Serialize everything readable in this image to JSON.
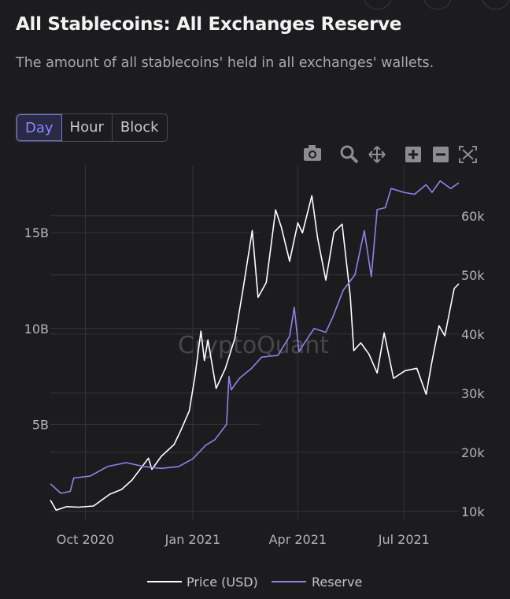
{
  "header": {
    "title": "All Stablecoins: All Exchanges Reserve",
    "subtitle": "The amount of all stablecoins' held in all exchanges' wallets."
  },
  "tabs": [
    "Day",
    "Hour",
    "Block"
  ],
  "active_tab": "Day",
  "toolbar": [
    "camera-icon",
    "zoom-icon",
    "pan-icon",
    "zoom-in-icon",
    "zoom-out-icon",
    "autoscale-icon"
  ],
  "watermark": "CryptoQuant",
  "colors": {
    "price": "#ffffff",
    "reserve": "#8b84ea",
    "background": "#1c1c1f",
    "grid": "#34343a",
    "axis_text": "#b4b4b8"
  },
  "chart_data": {
    "type": "line",
    "x_tick_labels": [
      "Oct 2020",
      "Jan 2021",
      "Apr 2021",
      "Jul 2021"
    ],
    "x_ticks": [
      "2020-10-01",
      "2021-01-01",
      "2021-04-01",
      "2021-07-01"
    ],
    "xlim": [
      "2020-09-01",
      "2021-08-17"
    ],
    "left_axis": {
      "ticks": [
        5,
        10,
        15
      ],
      "tick_labels": [
        "5B",
        "10B",
        "15B"
      ],
      "range": [
        0,
        18.5
      ]
    },
    "right_axis": {
      "ticks": [
        10000,
        20000,
        30000,
        40000,
        50000,
        60000
      ],
      "tick_labels": [
        "10k",
        "20k",
        "30k",
        "40k",
        "50k",
        "60k"
      ],
      "range": [
        8500,
        68500
      ]
    },
    "grid": true,
    "legend": "bottom-center",
    "series": [
      {
        "name": "Price (USD)",
        "axis": "right",
        "color": "#ffffff",
        "points": [
          [
            "2020-09-01",
            11900
          ],
          [
            "2020-09-06",
            10200
          ],
          [
            "2020-09-15",
            10800
          ],
          [
            "2020-09-25",
            10700
          ],
          [
            "2020-10-08",
            10900
          ],
          [
            "2020-10-22",
            12900
          ],
          [
            "2020-11-01",
            13700
          ],
          [
            "2020-11-10",
            15300
          ],
          [
            "2020-11-24",
            19000
          ],
          [
            "2020-11-27",
            17100
          ],
          [
            "2020-12-05",
            19300
          ],
          [
            "2020-12-16",
            21300
          ],
          [
            "2020-12-22",
            23800
          ],
          [
            "2020-12-29",
            27000
          ],
          [
            "2021-01-03",
            33000
          ],
          [
            "2021-01-08",
            40500
          ],
          [
            "2021-01-11",
            35500
          ],
          [
            "2021-01-14",
            39000
          ],
          [
            "2021-01-21",
            30800
          ],
          [
            "2021-01-29",
            34200
          ],
          [
            "2021-02-06",
            39200
          ],
          [
            "2021-02-13",
            47500
          ],
          [
            "2021-02-21",
            57500
          ],
          [
            "2021-02-26",
            46200
          ],
          [
            "2021-03-05",
            48700
          ],
          [
            "2021-03-13",
            61000
          ],
          [
            "2021-03-18",
            58000
          ],
          [
            "2021-03-25",
            52300
          ],
          [
            "2021-04-01",
            58800
          ],
          [
            "2021-04-05",
            57100
          ],
          [
            "2021-04-13",
            63400
          ],
          [
            "2021-04-18",
            56200
          ],
          [
            "2021-04-25",
            49100
          ],
          [
            "2021-05-02",
            57200
          ],
          [
            "2021-05-09",
            58600
          ],
          [
            "2021-05-16",
            46300
          ],
          [
            "2021-05-19",
            37200
          ],
          [
            "2021-05-25",
            38500
          ],
          [
            "2021-06-01",
            36600
          ],
          [
            "2021-06-08",
            33400
          ],
          [
            "2021-06-14",
            40200
          ],
          [
            "2021-06-22",
            32500
          ],
          [
            "2021-07-02",
            33800
          ],
          [
            "2021-07-12",
            34200
          ],
          [
            "2021-07-20",
            29800
          ],
          [
            "2021-07-25",
            35400
          ],
          [
            "2021-07-31",
            41400
          ],
          [
            "2021-08-05",
            39700
          ],
          [
            "2021-08-13",
            47700
          ],
          [
            "2021-08-17",
            48500
          ]
        ]
      },
      {
        "name": "Reserve",
        "axis": "left",
        "color": "#8b84ea",
        "points": [
          [
            "2020-09-01",
            1.9
          ],
          [
            "2020-09-10",
            1.4
          ],
          [
            "2020-09-18",
            1.5
          ],
          [
            "2020-09-21",
            2.2
          ],
          [
            "2020-10-05",
            2.3
          ],
          [
            "2020-10-20",
            2.8
          ],
          [
            "2020-11-05",
            3.0
          ],
          [
            "2020-11-20",
            2.8
          ],
          [
            "2020-12-05",
            2.7
          ],
          [
            "2020-12-20",
            2.8
          ],
          [
            "2021-01-01",
            3.2
          ],
          [
            "2021-01-12",
            3.9
          ],
          [
            "2021-01-20",
            4.2
          ],
          [
            "2021-01-30",
            5.0
          ],
          [
            "2021-02-01",
            7.5
          ],
          [
            "2021-02-03",
            6.8
          ],
          [
            "2021-02-10",
            7.4
          ],
          [
            "2021-02-20",
            7.9
          ],
          [
            "2021-03-01",
            8.5
          ],
          [
            "2021-03-15",
            8.6
          ],
          [
            "2021-03-25",
            9.6
          ],
          [
            "2021-03-29",
            11.1
          ],
          [
            "2021-04-02",
            8.8
          ],
          [
            "2021-04-15",
            10.0
          ],
          [
            "2021-04-25",
            9.8
          ],
          [
            "2021-05-01",
            10.6
          ],
          [
            "2021-05-10",
            12.0
          ],
          [
            "2021-05-20",
            12.8
          ],
          [
            "2021-05-28",
            15.1
          ],
          [
            "2021-06-03",
            12.7
          ],
          [
            "2021-06-08",
            16.2
          ],
          [
            "2021-06-15",
            16.3
          ],
          [
            "2021-06-20",
            17.3
          ],
          [
            "2021-07-01",
            17.1
          ],
          [
            "2021-07-10",
            17.0
          ],
          [
            "2021-07-20",
            17.5
          ],
          [
            "2021-07-25",
            17.1
          ],
          [
            "2021-08-01",
            17.7
          ],
          [
            "2021-08-10",
            17.3
          ],
          [
            "2021-08-17",
            17.6
          ]
        ]
      }
    ]
  }
}
